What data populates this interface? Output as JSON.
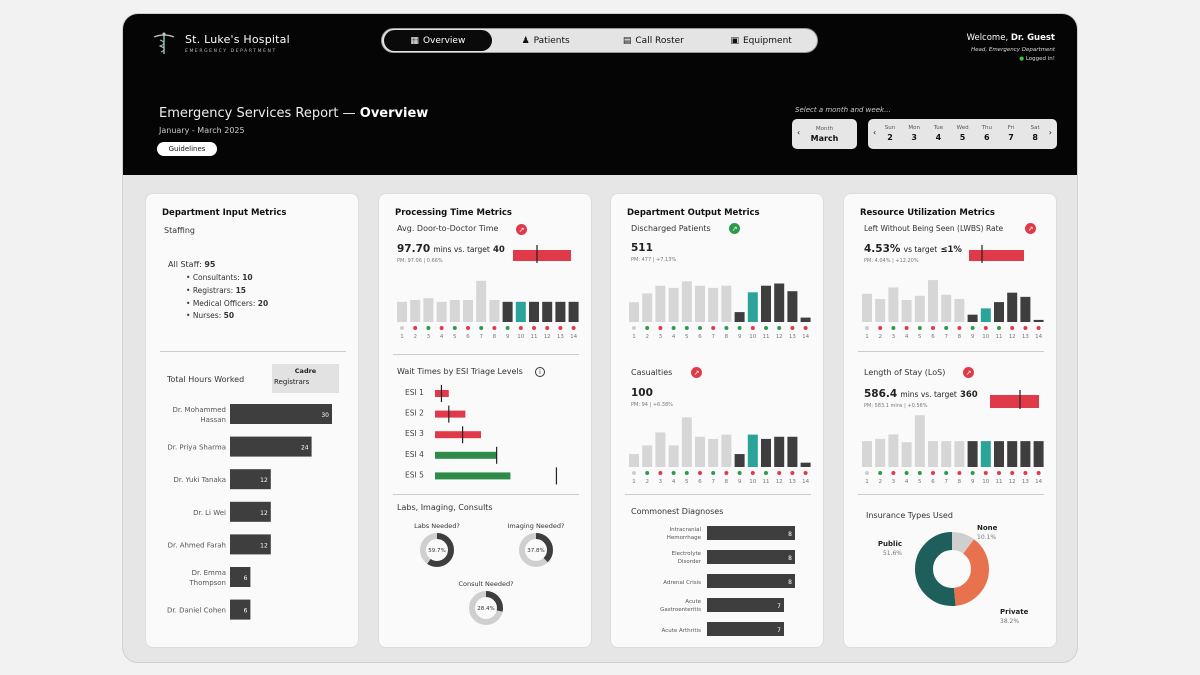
{
  "header": {
    "hospital_name": "St. Luke's Hospital",
    "department": "EMERGENCY DEPARTMENT",
    "welcome_prefix": "Welcome,",
    "user_name": "Dr. Guest",
    "user_role": "Head, Emergency Department",
    "login_status": "Logged in!",
    "nav": [
      {
        "label": "Overview",
        "icon": "grid-icon",
        "active": true
      },
      {
        "label": "Patients",
        "icon": "people-icon",
        "active": false
      },
      {
        "label": "Call Roster",
        "icon": "clipboard-icon",
        "active": false
      },
      {
        "label": "Equipment",
        "icon": "briefcase-icon",
        "active": false
      }
    ],
    "report_title": "Emergency Services Report — ",
    "report_title_bold": "Overview",
    "report_period": "January - March 2025",
    "guidelines_label": "Guidelines",
    "select_prompt": "Select a month and week...",
    "month_label": "Month",
    "month_value": "March",
    "week_days": [
      {
        "name": "Sun",
        "date": "2"
      },
      {
        "name": "Mon",
        "date": "3"
      },
      {
        "name": "Tue",
        "date": "4"
      },
      {
        "name": "Wed",
        "date": "5"
      },
      {
        "name": "Thu",
        "date": "6"
      },
      {
        "name": "Fri",
        "date": "7"
      },
      {
        "name": "Sat",
        "date": "8"
      }
    ]
  },
  "input_metrics": {
    "title": "Department Input Metrics",
    "staffing_label": "Staffing",
    "all_staff_label": "All Staff:",
    "all_staff_value": "95",
    "staff": [
      {
        "label": "Consultants:",
        "value": "10"
      },
      {
        "label": "Registrars:",
        "value": "15"
      },
      {
        "label": "Medical Officers:",
        "value": "20"
      },
      {
        "label": "Nurses:",
        "value": "50"
      }
    ],
    "hours_label": "Total Hours Worked",
    "cadre_label": "Cadre",
    "cadre_value": "Registrars",
    "chart_data": {
      "type": "bar",
      "orientation": "horizontal",
      "categories": [
        "Dr. Mohammed Hassan",
        "Dr. Priya Sharma",
        "Dr. Yuki Tanaka",
        "Dr. Li Wei",
        "Dr. Ahmed Farah",
        "Dr. Emma Thompson",
        "Dr. Daniel Cohen"
      ],
      "values": [
        30,
        24,
        12,
        12,
        12,
        6,
        6
      ]
    }
  },
  "processing": {
    "title": "Processing Time Metrics",
    "dtd_label": "Avg. Door-to-Doctor Time",
    "dtd_value": "97.70",
    "dtd_unit": "mins vs. target",
    "dtd_target": "40",
    "dtd_pm": "PM: 97.06 | 0.66%",
    "dtd_chart": {
      "type": "bar",
      "categories": [
        "1",
        "2",
        "3",
        "4",
        "5",
        "6",
        "7",
        "8",
        "9",
        "10",
        "11",
        "12",
        "13",
        "14"
      ],
      "values": [
        22,
        24,
        26,
        22,
        24,
        24,
        45,
        24,
        22,
        22,
        22,
        22,
        22,
        22
      ],
      "highlight_index": 9,
      "dots": [
        "grey",
        "red",
        "green",
        "red",
        "green",
        "red",
        "green",
        "red",
        "green",
        "red",
        "red",
        "red",
        "red",
        "red"
      ]
    },
    "wait_label": "Wait Times by ESI Triage Levels",
    "wait_chart": {
      "type": "bar",
      "orientation": "horizontal",
      "categories": [
        "ESI 1",
        "ESI 2",
        "ESI 3",
        "ESI 4",
        "ESI 5"
      ],
      "values": [
        15,
        33,
        50,
        67,
        82
      ],
      "targets": [
        7,
        15,
        30,
        67,
        132
      ],
      "colors": [
        "#e03a4a",
        "#e03a4a",
        "#e03a4a",
        "#2e8b4a",
        "#2e8b4a"
      ]
    },
    "labs_label": "Labs, Imaging, Consults",
    "donuts": [
      {
        "label": "Labs Needed?",
        "value": 59.7,
        "text": "59.7%"
      },
      {
        "label": "Imaging Needed?",
        "value": 37.8,
        "text": "37.8%"
      },
      {
        "label": "Consult Needed?",
        "value": 28.4,
        "text": "28.4%"
      }
    ]
  },
  "output": {
    "title": "Department Output Metrics",
    "discharged_label": "Discharged Patients",
    "discharged_value": "511",
    "discharged_pm": "PM: 477 | +7.13%",
    "discharged_chart": {
      "type": "bar",
      "categories": [
        "1",
        "2",
        "3",
        "4",
        "5",
        "6",
        "7",
        "8",
        "9",
        "10",
        "11",
        "12",
        "13",
        "14"
      ],
      "values": [
        18,
        26,
        33,
        31,
        37,
        33,
        31,
        33,
        9,
        27,
        33,
        35,
        28,
        4
      ],
      "highlight_index": 9,
      "dots": [
        "grey",
        "green",
        "red",
        "green",
        "green",
        "green",
        "red",
        "green",
        "green",
        "red",
        "green",
        "green",
        "red",
        "red"
      ]
    },
    "casualties_label": "Casualties",
    "casualties_value": "100",
    "casualties_pm": "PM: 94 | +6.38%",
    "casualties_chart": {
      "type": "bar",
      "categories": [
        "1",
        "2",
        "3",
        "4",
        "5",
        "6",
        "7",
        "8",
        "9",
        "10",
        "11",
        "12",
        "13",
        "14"
      ],
      "values": [
        6,
        10,
        16,
        10,
        23,
        14,
        13,
        15,
        6,
        15,
        13,
        14,
        14,
        2
      ],
      "highlight_index": 9,
      "dots": [
        "grey",
        "green",
        "red",
        "green",
        "green",
        "red",
        "green",
        "red",
        "green",
        "red",
        "green",
        "red",
        "red",
        "red"
      ]
    },
    "diagnoses_label": "Commonest Diagnoses",
    "diagnoses_chart": {
      "type": "bar",
      "orientation": "horizontal",
      "categories": [
        "Intracranial Hemorrhage",
        "Electrolyte Disorder",
        "Adrenal Crisis",
        "Acute Gastroenteritis",
        "Acute Arthritis"
      ],
      "values": [
        8,
        8,
        8,
        7,
        7
      ]
    }
  },
  "resource": {
    "title": "Resource Utilization Metrics",
    "lwbs_label": "Left Without Being Seen (LWBS) Rate",
    "lwbs_value": "4.53%",
    "lwbs_unit": "vs target",
    "lwbs_target": "≤1%",
    "lwbs_pm": "PM: 4.04% | +12.20%",
    "lwbs_chart": {
      "type": "bar",
      "categories": [
        "1",
        "2",
        "3",
        "4",
        "5",
        "6",
        "7",
        "8",
        "9",
        "10",
        "11",
        "12",
        "13",
        "14"
      ],
      "values": [
        27,
        22,
        33,
        21,
        25,
        40,
        26,
        22,
        7,
        13,
        19,
        28,
        24,
        2
      ],
      "highlight_index": 9,
      "dots": [
        "grey",
        "red",
        "green",
        "red",
        "green",
        "red",
        "green",
        "red",
        "green",
        "red",
        "green",
        "red",
        "red",
        "red"
      ]
    },
    "los_label": "Length of Stay (LoS)",
    "los_value": "586.4",
    "los_unit": "mins vs. target",
    "los_target": "360",
    "los_pm": "PM: 583.1 mins | +0.56%",
    "los_chart": {
      "type": "bar",
      "categories": [
        "1",
        "2",
        "3",
        "4",
        "5",
        "6",
        "7",
        "8",
        "9",
        "10",
        "11",
        "12",
        "13",
        "14"
      ],
      "values": [
        23,
        25,
        29,
        22,
        46,
        23,
        23,
        23,
        23,
        23,
        23,
        23,
        23,
        23
      ],
      "highlight_index": 9,
      "dots": [
        "grey",
        "green",
        "red",
        "green",
        "green",
        "red",
        "green",
        "red",
        "green",
        "red",
        "red",
        "red",
        "red",
        "red"
      ]
    },
    "insurance_label": "Insurance Types Used",
    "insurance_chart": {
      "type": "pie",
      "categories": [
        "Public",
        "Private",
        "None"
      ],
      "values": [
        51.6,
        38.2,
        10.1
      ],
      "labels": [
        "51.6%",
        "38.2%",
        "10.1%"
      ],
      "colors": [
        "#1f5f5b",
        "#e8714e",
        "#cfcfcf"
      ]
    }
  },
  "colors": {
    "teal": "#2aa39a",
    "dark_bar": "#3e3e3e",
    "light_bar": "#d6d6d6",
    "red": "#e03a4a",
    "green": "#2e9a4b"
  }
}
